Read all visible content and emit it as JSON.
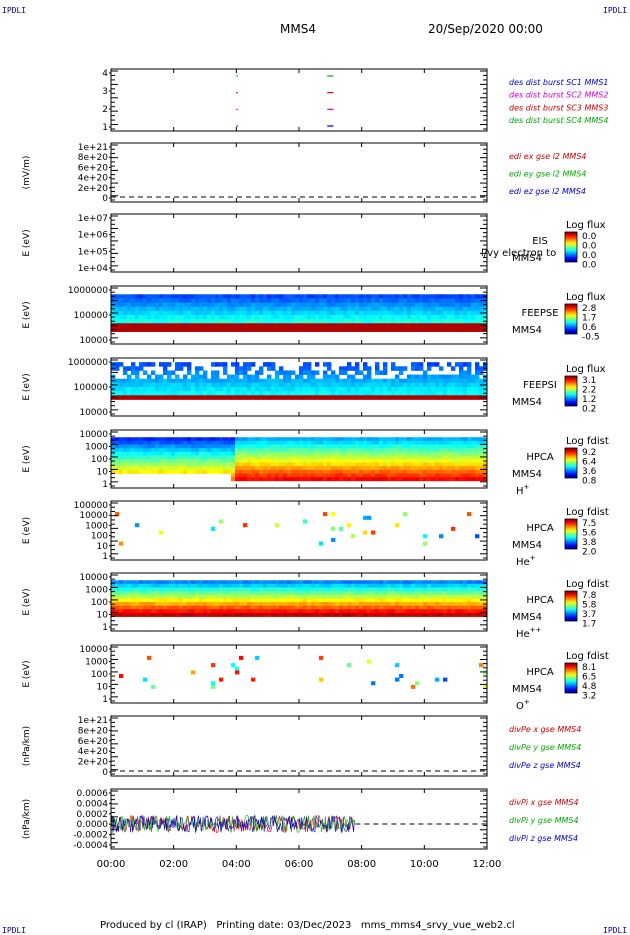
{
  "header": {
    "probe": "MMS4",
    "date": "20/Sep/2020 00:00",
    "corner_label": "IPDLI"
  },
  "footer": {
    "text": "Produced by cl (IRAP)   Printing date: 03/Dec/2023   mms_mms4_srvy_vue_web2.cl"
  },
  "chart_data": [
    {
      "id": "burst",
      "type": "scatter",
      "ylabel": "",
      "yticks": [
        "4",
        "3",
        "2",
        "1"
      ],
      "legend": [
        {
          "text": "des dist burst SC1 MMS1",
          "color": "#0000cc"
        },
        {
          "text": "des dist burst SC2 MMS2",
          "color": "#cc00cc"
        },
        {
          "text": "des dist burst SC3 MMS3",
          "color": "#cc0000"
        },
        {
          "text": "des dist burst SC4 MMS4",
          "color": "#00aa00"
        }
      ],
      "segments": [
        {
          "sc": 4,
          "x": [
            4.0,
            4.05
          ],
          "color": "#00aa00"
        },
        {
          "sc": 3,
          "x": [
            4.0,
            4.05
          ],
          "color": "#cc0000"
        },
        {
          "sc": 2,
          "x": [
            4.0,
            4.05
          ],
          "color": "#cc00cc"
        },
        {
          "sc": 1,
          "x": [
            4.0,
            4.05
          ],
          "color": "#0000cc"
        },
        {
          "sc": 4,
          "x": [
            6.9,
            7.1
          ],
          "color": "#00aa00"
        },
        {
          "sc": 3,
          "x": [
            6.9,
            7.1
          ],
          "color": "#cc0000"
        },
        {
          "sc": 2,
          "x": [
            6.9,
            7.1
          ],
          "color": "#cc00cc"
        },
        {
          "sc": 1,
          "x": [
            6.9,
            7.1
          ],
          "color": "#0000cc"
        }
      ]
    },
    {
      "id": "edi",
      "type": "line",
      "ylabel": "(mV/m)",
      "yticks": [
        "1e+21",
        "8e+20",
        "6e+20",
        "4e+20",
        "2e+20",
        "0"
      ],
      "legend": [
        {
          "text": "edi ex gse l2 MMS4",
          "color": "#cc0000"
        },
        {
          "text": "edi ey gse l2 MMS4",
          "color": "#00aa00"
        },
        {
          "text": "edi ez gse l2 MMS4",
          "color": "#0000cc"
        }
      ],
      "zero_line": true
    },
    {
      "id": "eis",
      "type": "heatmap",
      "ylabel": "E (eV)",
      "yticks": [
        "1e+07",
        "1e+06",
        "1e+05",
        "1e+04"
      ],
      "instrument": "EIS",
      "probe_label": "MMS4",
      "overlay_text": "l/vy electron to",
      "cbar_title": "Log flux",
      "cbar_ticks": [
        "0.0",
        "0.0",
        "0.0",
        "0.0"
      ],
      "empty": true
    },
    {
      "id": "feepse",
      "type": "heatmap",
      "ylabel": "E (eV)",
      "yticks": [
        "1000000",
        "100000",
        "10000"
      ],
      "instrument": "FEEPSE",
      "probe_label": "MMS4",
      "cbar_title": "Log flux",
      "cbar_ticks": [
        "2.8",
        "1.7",
        "0.6",
        "-0.5"
      ]
    },
    {
      "id": "feepsi",
      "type": "heatmap",
      "ylabel": "E (eV)",
      "yticks": [
        "1000000",
        "100000",
        "10000"
      ],
      "instrument": "FEEPSI",
      "probe_label": "MMS4",
      "cbar_title": "Log flux",
      "cbar_ticks": [
        "3.1",
        "2.2",
        "1.2",
        "0.2"
      ]
    },
    {
      "id": "hpca_h",
      "type": "heatmap",
      "ylabel": "E (eV)",
      "yticks": [
        "10000",
        "1000",
        "100",
        "10",
        "1"
      ],
      "instrument": "HPCA",
      "probe_label": "MMS4",
      "species": "H",
      "species_sup": "+",
      "cbar_title": "Log fdist",
      "cbar_ticks": [
        "9.2",
        "6.4",
        "3.6",
        "0.8"
      ]
    },
    {
      "id": "hpca_he",
      "type": "heatmap",
      "ylabel": "E (eV)",
      "yticks": [
        "100000",
        "10000",
        "1000",
        "100",
        "10",
        "1"
      ],
      "instrument": "HPCA",
      "probe_label": "MMS4",
      "species": "He",
      "species_sup": "+",
      "cbar_title": "Log fdist",
      "cbar_ticks": [
        "7.5",
        "5.6",
        "3.8",
        "2.0"
      ]
    },
    {
      "id": "hpca_hepp",
      "type": "heatmap",
      "ylabel": "E (eV)",
      "yticks": [
        "10000",
        "1000",
        "100",
        "10",
        "1"
      ],
      "instrument": "HPCA",
      "probe_label": "MMS4",
      "species": "He",
      "species_sup": "++",
      "cbar_title": "Log fdist",
      "cbar_ticks": [
        "7.8",
        "5.8",
        "3.7",
        "1.7"
      ]
    },
    {
      "id": "hpca_o",
      "type": "heatmap",
      "ylabel": "E (eV)",
      "yticks": [
        "10000",
        "1000",
        "100",
        "10",
        "1"
      ],
      "instrument": "HPCA",
      "probe_label": "MMS4",
      "species": "O",
      "species_sup": "+",
      "cbar_title": "Log fdist",
      "cbar_ticks": [
        "8.1",
        "6.5",
        "4.8",
        "3.2"
      ]
    },
    {
      "id": "divpe",
      "type": "line",
      "ylabel": "(nPa/km)",
      "yticks": [
        "1e+21",
        "8e+20",
        "6e+20",
        "4e+20",
        "2e+20",
        "0"
      ],
      "legend": [
        {
          "text": "divPe x gse MMS4",
          "color": "#cc0000"
        },
        {
          "text": "divPe y gse MMS4",
          "color": "#00aa00"
        },
        {
          "text": "divPe z gse MMS4",
          "color": "#0000cc"
        }
      ],
      "zero_line": true
    },
    {
      "id": "divpi",
      "type": "line",
      "ylabel": "(nPa/km)",
      "yticks": [
        "0.0006",
        "0.0004",
        "0.0002",
        "0.0000",
        "-0.0002",
        "-0.0004"
      ],
      "legend": [
        {
          "text": "divPi x gse MMS4",
          "color": "#cc0000"
        },
        {
          "text": "divPi y gse MMS4",
          "color": "#00aa00"
        },
        {
          "text": "divPi z gse MMS4",
          "color": "#0000cc"
        }
      ],
      "ylim": [
        -0.0005,
        0.0007
      ],
      "data_end_hour": 7.8,
      "zero_line": true
    }
  ],
  "xaxis": {
    "ticks": [
      "00:00",
      "02:00",
      "04:00",
      "06:00",
      "08:00",
      "10:00",
      "12:00"
    ],
    "range_hours": [
      0,
      12
    ]
  }
}
